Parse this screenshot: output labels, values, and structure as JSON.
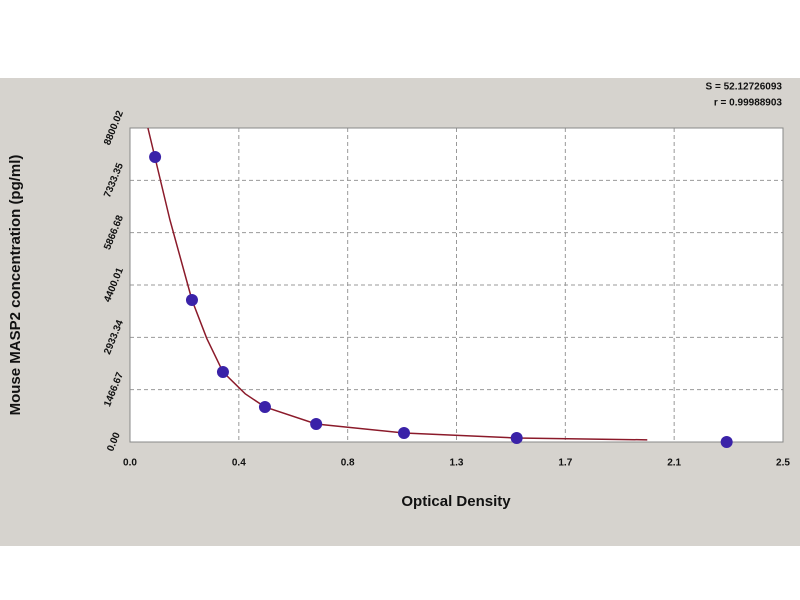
{
  "chart_data": {
    "type": "scatter",
    "x_label": "Optical Density",
    "y_label": "Mouse MASP2 concentration (pg/ml)",
    "annotations": [
      "S = 52.12726093",
      "r = 0.99988903"
    ],
    "xlim": [
      0,
      2.55
    ],
    "xticks": [
      {
        "value": 0,
        "label": "0.0"
      },
      {
        "value": 0.425,
        "label": "0.4"
      },
      {
        "value": 0.85,
        "label": "0.8"
      },
      {
        "value": 1.275,
        "label": "1.3"
      },
      {
        "value": 1.7,
        "label": "1.7"
      },
      {
        "value": 2.125,
        "label": "2.1"
      },
      {
        "value": 2.55,
        "label": "2.5"
      }
    ],
    "ylim": [
      0,
      8800.02
    ],
    "yticks": [
      {
        "value": 0,
        "label": "0.00"
      },
      1466.67,
      2933.34,
      4400.01,
      5866.68,
      7333.35,
      8800.02
    ],
    "grid": true,
    "fit": {
      "color": "#8b1a2a",
      "x": [
        0.07,
        0.156,
        0.242,
        0.3,
        0.363,
        0.45,
        0.527,
        0.727,
        1.07,
        1.51,
        2.02
      ],
      "values": [
        8800,
        6222,
        3980,
        2900,
        1962,
        1350,
        981,
        504,
        252,
        112,
        60
      ]
    },
    "points": {
      "color": "#3a22a8",
      "x": [
        0.098,
        0.242,
        0.363,
        0.527,
        0.727,
        1.07,
        1.51,
        2.33
      ],
      "values": [
        7987,
        3980,
        1962,
        981,
        504,
        252,
        112,
        0
      ]
    }
  }
}
